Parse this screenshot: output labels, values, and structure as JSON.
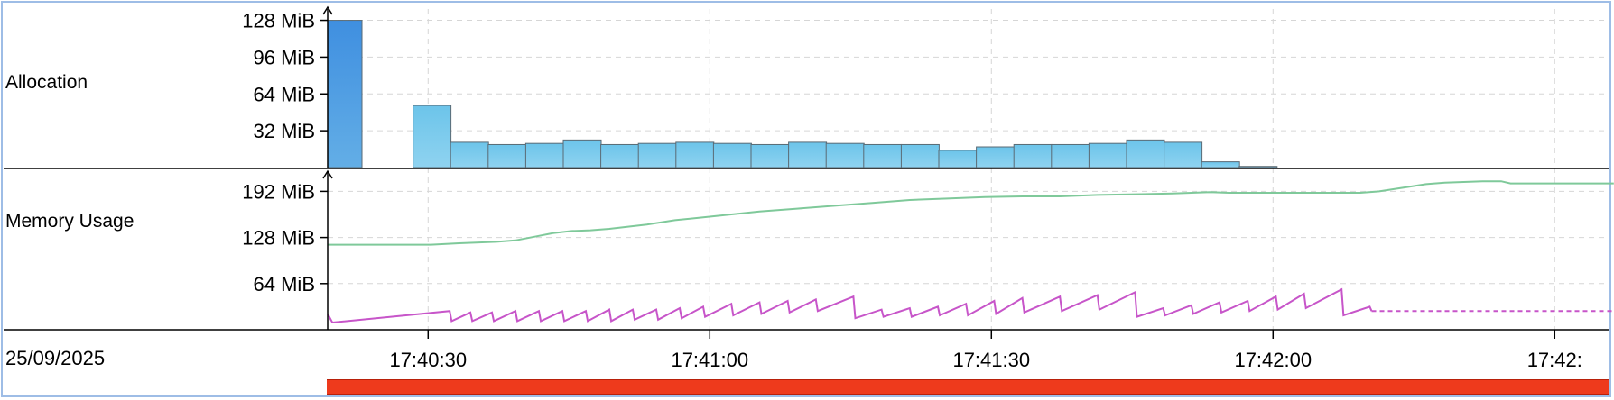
{
  "date_label": "25/09/2025",
  "colors": {
    "bar_fill_top": "#6cc4ea",
    "bar_fill_bottom": "#8fd3f0",
    "first_bar_top": "#3f8fe0",
    "first_bar_bottom": "#63aee6",
    "bar_stroke": "#5a6a74",
    "used_heap": "#c755c9",
    "committed": "#7fc99a",
    "timeline": "#ee3a1c",
    "grid": "#d6d6d6"
  },
  "chart_data": [
    {
      "type": "bar",
      "label": "Allocation",
      "unit": "MiB",
      "y_ticks": [
        "128 MiB",
        "96 MiB",
        "64 MiB",
        "32 MiB"
      ],
      "y_tick_values": [
        128,
        96,
        64,
        32
      ],
      "ylim": [
        0,
        130
      ],
      "bars": [
        {
          "t": 0.0,
          "mib": 128
        },
        {
          "t": 9.0,
          "mib": 54
        },
        {
          "t": 13.0,
          "mib": 22
        },
        {
          "t": 17.0,
          "mib": 20
        },
        {
          "t": 21.0,
          "mib": 21
        },
        {
          "t": 25.0,
          "mib": 24
        },
        {
          "t": 29.0,
          "mib": 20
        },
        {
          "t": 33.0,
          "mib": 21
        },
        {
          "t": 37.0,
          "mib": 22
        },
        {
          "t": 41.0,
          "mib": 21
        },
        {
          "t": 45.0,
          "mib": 20
        },
        {
          "t": 49.0,
          "mib": 22
        },
        {
          "t": 53.0,
          "mib": 21
        },
        {
          "t": 57.0,
          "mib": 20
        },
        {
          "t": 61.0,
          "mib": 20
        },
        {
          "t": 65.0,
          "mib": 15
        },
        {
          "t": 69.0,
          "mib": 18
        },
        {
          "t": 73.0,
          "mib": 20
        },
        {
          "t": 77.0,
          "mib": 20
        },
        {
          "t": 81.0,
          "mib": 21
        },
        {
          "t": 85.0,
          "mib": 24
        },
        {
          "t": 89.0,
          "mib": 22
        },
        {
          "t": 93.0,
          "mib": 5
        },
        {
          "t": 97.0,
          "mib": 1
        }
      ]
    },
    {
      "type": "line",
      "label": "Memory Usage",
      "unit": "MiB",
      "y_ticks": [
        "192 MiB",
        "128 MiB",
        "64 MiB"
      ],
      "y_tick_values": [
        192,
        128,
        64
      ],
      "ylim": [
        0,
        220
      ],
      "x_ticks": [
        "17:40:30",
        "17:41:00",
        "17:41:30",
        "17:42:00",
        "17:42:"
      ],
      "x_tick_seconds": [
        10.7,
        40.7,
        70.7,
        100.7,
        130.7
      ],
      "series": [
        {
          "key": "committed",
          "style": "solid",
          "points": [
            [
              0,
              118
            ],
            [
              11,
              118
            ],
            [
              14,
              120
            ],
            [
              18,
              122
            ],
            [
              20,
              124
            ],
            [
              22,
              129
            ],
            [
              24,
              134
            ],
            [
              26,
              137
            ],
            [
              28,
              138
            ],
            [
              30,
              140
            ],
            [
              34,
              146
            ],
            [
              37,
              152
            ],
            [
              40,
              156
            ],
            [
              43,
              160
            ],
            [
              46,
              164
            ],
            [
              50,
              168
            ],
            [
              54,
              172
            ],
            [
              58,
              176
            ],
            [
              62,
              180
            ],
            [
              66,
              182
            ],
            [
              70,
              184
            ],
            [
              74,
              185
            ],
            [
              78,
              185
            ],
            [
              82,
              187
            ],
            [
              86,
              188
            ],
            [
              90,
              189
            ],
            [
              92,
              190
            ],
            [
              94,
              191
            ],
            [
              96,
              190
            ],
            [
              100,
              190
            ],
            [
              106,
              190
            ],
            [
              110,
              190
            ],
            [
              112,
              192
            ],
            [
              115,
              198
            ],
            [
              117,
              202
            ],
            [
              119,
              204
            ],
            [
              123,
              206
            ],
            [
              125,
              206
            ],
            [
              126,
              203
            ],
            [
              137,
              203
            ]
          ]
        },
        {
          "key": "used_heap",
          "style": "sawtooth",
          "points": [
            [
              0,
              22
            ],
            [
              0.5,
              10
            ],
            [
              13,
              26
            ],
            [
              13.2,
              12
            ],
            [
              15.2,
              24
            ],
            [
              15.4,
              12
            ],
            [
              17.5,
              24
            ],
            [
              17.7,
              12
            ],
            [
              20,
              26
            ],
            [
              20.2,
              12
            ],
            [
              22.5,
              26
            ],
            [
              22.7,
              12
            ],
            [
              25,
              26
            ],
            [
              25.2,
              12
            ],
            [
              27.5,
              26
            ],
            [
              27.7,
              12
            ],
            [
              30,
              28
            ],
            [
              30.2,
              12
            ],
            [
              32.5,
              28
            ],
            [
              32.7,
              14
            ],
            [
              35,
              28
            ],
            [
              35.2,
              14
            ],
            [
              37.5,
              30
            ],
            [
              37.7,
              16
            ],
            [
              40,
              32
            ],
            [
              40.2,
              18
            ],
            [
              43,
              36
            ],
            [
              43.2,
              20
            ],
            [
              46,
              38
            ],
            [
              46.2,
              22
            ],
            [
              49,
              40
            ],
            [
              49.2,
              24
            ],
            [
              52,
              42
            ],
            [
              52.2,
              26
            ],
            [
              56,
              46
            ],
            [
              56.2,
              16
            ],
            [
              59,
              28
            ],
            [
              59.2,
              18
            ],
            [
              62,
              30
            ],
            [
              62.2,
              18
            ],
            [
              65,
              32
            ],
            [
              65.2,
              20
            ],
            [
              68,
              36
            ],
            [
              68.2,
              20
            ],
            [
              71,
              40
            ],
            [
              71.2,
              22
            ],
            [
              74,
              44
            ],
            [
              74.2,
              24
            ],
            [
              78,
              46
            ],
            [
              78.2,
              26
            ],
            [
              82,
              48
            ],
            [
              82.2,
              28
            ],
            [
              86,
              52
            ],
            [
              86.2,
              18
            ],
            [
              89,
              30
            ],
            [
              89.2,
              20
            ],
            [
              92,
              34
            ],
            [
              92.2,
              22
            ],
            [
              95,
              38
            ],
            [
              95.2,
              24
            ],
            [
              98,
              40
            ],
            [
              98.2,
              26
            ],
            [
              101,
              46
            ],
            [
              101.2,
              28
            ],
            [
              104,
              50
            ],
            [
              104.2,
              30
            ],
            [
              108,
              56
            ],
            [
              108.2,
              20
            ],
            [
              111,
              32
            ],
            [
              111.2,
              26
            ]
          ]
        },
        {
          "key": "used_heap_tail",
          "style": "dashed",
          "points": [
            [
              111.2,
              26
            ],
            [
              137,
              26
            ]
          ]
        }
      ]
    }
  ]
}
